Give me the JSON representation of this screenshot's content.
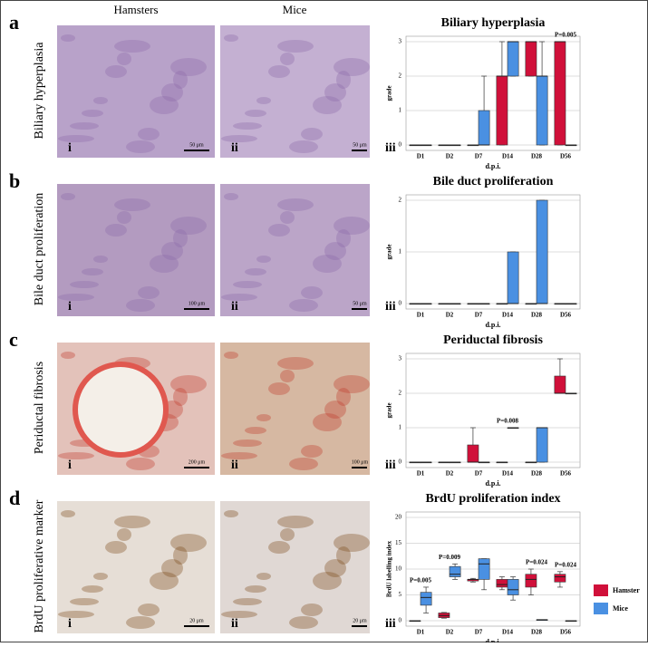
{
  "column_headers": [
    "Hamsters",
    "Mice"
  ],
  "panels": [
    {
      "letter": "a",
      "row_label": "Biliary hyperplasia",
      "image_labels": [
        "i",
        "ii",
        "iii"
      ],
      "scale_bars": [
        "50 μm",
        "50 μm"
      ]
    },
    {
      "letter": "b",
      "row_label": "Bile duct proliferation",
      "image_labels": [
        "i",
        "ii",
        "iii"
      ],
      "scale_bars": [
        "100 μm",
        "50 μm"
      ]
    },
    {
      "letter": "c",
      "row_label": "Periductal fibrosis",
      "image_labels": [
        "i",
        "ii",
        "iii"
      ],
      "scale_bars": [
        "200 μm",
        "100 μm"
      ]
    },
    {
      "letter": "d",
      "row_label": "BrdU proliferative marker",
      "image_labels": [
        "i",
        "ii",
        "iii"
      ],
      "scale_bars": [
        "20 μm",
        "20 μm"
      ]
    }
  ],
  "chart_data": [
    {
      "type": "box",
      "title": "Biliary hyperplasia",
      "x_label": "d.p.i.",
      "y_label": "grade",
      "categories": [
        "D1",
        "D2",
        "D7",
        "D14",
        "D28",
        "D56"
      ],
      "ylim": [
        0,
        3
      ],
      "yticks": [
        0,
        1,
        2,
        3
      ],
      "grid": true,
      "series": [
        {
          "color": "#d0103a",
          "values": [
            [
              0,
              0,
              0,
              0,
              0
            ],
            [
              0,
              0,
              0,
              0,
              0
            ],
            [
              0,
              0,
              0,
              0,
              0
            ],
            [
              0,
              0,
              2,
              2,
              3
            ],
            [
              2,
              2,
              3,
              3,
              3
            ],
            [
              0,
              0,
              3,
              3,
              3
            ]
          ]
        },
        {
          "color": "#4a90e2",
          "values": [
            [
              0,
              0,
              0,
              0,
              0
            ],
            [
              0,
              0,
              0,
              0,
              0
            ],
            [
              0,
              0,
              0,
              1,
              2
            ],
            [
              2,
              2,
              3,
              3,
              3
            ],
            [
              0,
              0,
              2,
              2,
              3
            ],
            [
              0,
              0,
              0,
              0,
              0
            ]
          ]
        }
      ],
      "annotations": [
        {
          "label": "P=0.005",
          "category": "D56"
        }
      ]
    },
    {
      "type": "box",
      "title": "Bile duct proliferation",
      "x_label": "d.p.i.",
      "y_label": "grade",
      "categories": [
        "D1",
        "D2",
        "D7",
        "D14",
        "D28",
        "D56"
      ],
      "ylim": [
        0,
        2
      ],
      "yticks": [
        0,
        1,
        2
      ],
      "grid": true,
      "series": [
        {
          "color": "#d0103a",
          "values": [
            [
              0,
              0,
              0,
              0,
              0
            ],
            [
              0,
              0,
              0,
              0,
              0
            ],
            [
              0,
              0,
              0,
              0,
              0
            ],
            [
              0,
              0,
              0,
              0,
              0
            ],
            [
              0,
              0,
              0,
              0,
              0
            ],
            [
              0,
              0,
              0,
              0,
              0
            ]
          ]
        },
        {
          "color": "#4a90e2",
          "values": [
            [
              0,
              0,
              0,
              0,
              0
            ],
            [
              0,
              0,
              0,
              0,
              0
            ],
            [
              0,
              0,
              0,
              0,
              0
            ],
            [
              0,
              0,
              0,
              1,
              1
            ],
            [
              0,
              0,
              0,
              2,
              2
            ],
            [
              0,
              0,
              0,
              0,
              0
            ]
          ]
        }
      ],
      "annotations": []
    },
    {
      "type": "box",
      "title": "Periductal fibrosis",
      "x_label": "d.p.i.",
      "y_label": "grade",
      "categories": [
        "D1",
        "D2",
        "D7",
        "D14",
        "D28",
        "D56"
      ],
      "ylim": [
        0,
        3
      ],
      "yticks": [
        0,
        1,
        2,
        3
      ],
      "grid": true,
      "series": [
        {
          "color": "#d0103a",
          "values": [
            [
              0,
              0,
              0,
              0,
              0
            ],
            [
              0,
              0,
              0,
              0,
              0
            ],
            [
              0,
              0,
              0,
              0.5,
              1
            ],
            [
              0,
              0,
              0,
              0,
              0
            ],
            [
              0,
              0,
              0,
              0,
              0
            ],
            [
              2,
              2,
              2,
              2.5,
              3
            ]
          ]
        },
        {
          "color": "#4a90e2",
          "values": [
            [
              0,
              0,
              0,
              0,
              0
            ],
            [
              0,
              0,
              0,
              0,
              0
            ],
            [
              0,
              0,
              0,
              0,
              0
            ],
            [
              1,
              1,
              1,
              1,
              1
            ],
            [
              0,
              0,
              1,
              1,
              1
            ],
            [
              2,
              2,
              2,
              2,
              2
            ]
          ]
        }
      ],
      "annotations": [
        {
          "label": "P=0.008",
          "category": "D14"
        }
      ]
    },
    {
      "type": "box",
      "title": "BrdU proliferation index",
      "x_label": "d.p.i.",
      "y_label": "BrdU labelling index",
      "categories": [
        "D1",
        "D2",
        "D7",
        "D14",
        "D28",
        "D56"
      ],
      "ylim": [
        0,
        20
      ],
      "yticks": [
        0,
        5,
        10,
        15,
        20
      ],
      "grid": true,
      "series": [
        {
          "name": "Hamster",
          "color": "#d0103a",
          "values": [
            [
              0,
              0,
              0,
              0,
              0
            ],
            [
              0.5,
              0.6,
              1,
              1.5,
              1.6
            ],
            [
              7.5,
              7.7,
              8,
              8,
              8.2
            ],
            [
              6,
              6.5,
              7,
              8,
              8.5
            ],
            [
              5,
              6.5,
              8,
              9,
              10
            ],
            [
              6.5,
              7.5,
              8.5,
              9,
              9.5
            ]
          ]
        },
        {
          "name": "Mice",
          "color": "#4a90e2",
          "values": [
            [
              1.5,
              3,
              4.5,
              5.5,
              6.5
            ],
            [
              8,
              8.5,
              9,
              10.5,
              11
            ],
            [
              6,
              8,
              11,
              12,
              12
            ],
            [
              4,
              5,
              6,
              8,
              8.5
            ],
            [
              0.2,
              0.2,
              0.2,
              0.2,
              0.2
            ],
            [
              0,
              0,
              0,
              0,
              0
            ]
          ]
        }
      ],
      "annotations": [
        {
          "label": "P=0.005",
          "category": "D1"
        },
        {
          "label": "P=0.009",
          "category": "D2"
        },
        {
          "label": "P=0.024",
          "category": "D28"
        },
        {
          "label": "P=0.024",
          "category": "D56"
        }
      ]
    }
  ]
}
